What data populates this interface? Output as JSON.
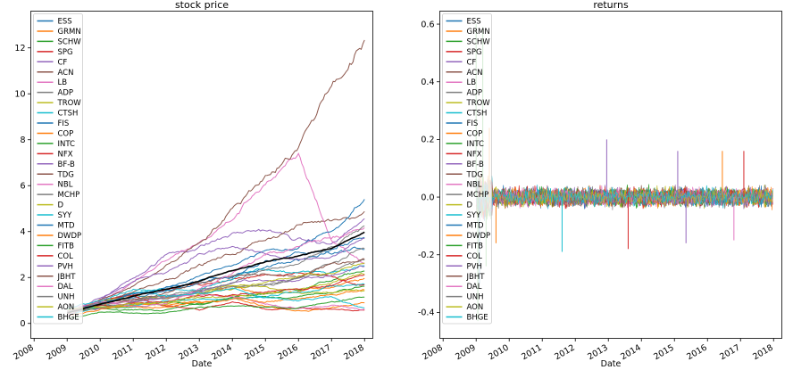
{
  "chart_data": [
    {
      "type": "line",
      "title": "stock price",
      "xlabel": "Date",
      "ylabel": "",
      "xlim": [
        2007.9,
        2018.25
      ],
      "ylim": [
        -0.65,
        13.6
      ],
      "x_ticks": [
        "2008",
        "2009",
        "2010",
        "2011",
        "2012",
        "2013",
        "2014",
        "2015",
        "2016",
        "2017",
        "2018"
      ],
      "y_ticks": [
        "0",
        "2",
        "4",
        "6",
        "8",
        "10",
        "12"
      ],
      "y_tick_values": [
        0,
        2,
        4,
        6,
        8,
        10,
        12
      ],
      "legend_position": "upper left",
      "grid": false,
      "series": [
        {
          "name": "ESS",
          "color": "#1f77b4",
          "x": [
            2009,
            2010,
            2011,
            2012,
            2013,
            2014,
            2015,
            2016,
            2017,
            2018
          ],
          "y": [
            0.5,
            0.9,
            1.3,
            1.5,
            1.8,
            2.1,
            2.7,
            3.1,
            2.9,
            3.2
          ]
        },
        {
          "name": "GRMN",
          "color": "#ff7f0e",
          "x": [
            2009,
            2010,
            2011,
            2012,
            2013,
            2014,
            2015,
            2016,
            2017,
            2018
          ],
          "y": [
            0.5,
            0.9,
            1.0,
            1.1,
            1.3,
            1.6,
            1.3,
            1.5,
            1.6,
            1.9
          ]
        },
        {
          "name": "SCHW",
          "color": "#2ca02c",
          "x": [
            2009,
            2010,
            2011,
            2012,
            2013,
            2014,
            2015,
            2016,
            2017,
            2018
          ],
          "y": [
            0.6,
            0.7,
            0.6,
            0.6,
            0.9,
            1.1,
            1.3,
            1.5,
            1.9,
            2.3
          ]
        },
        {
          "name": "SPG",
          "color": "#d62728",
          "x": [
            2009,
            2010,
            2011,
            2012,
            2013,
            2014,
            2015,
            2016,
            2017,
            2018
          ],
          "y": [
            0.4,
            0.9,
            1.2,
            1.4,
            1.6,
            1.8,
            2.0,
            2.1,
            1.9,
            1.7
          ]
        },
        {
          "name": "CF",
          "color": "#9467bd",
          "x": [
            2009,
            2010,
            2011,
            2012,
            2013,
            2014,
            2015,
            2016,
            2017,
            2018
          ],
          "y": [
            0.5,
            1.0,
            2.0,
            3.0,
            3.4,
            3.9,
            4.1,
            3.6,
            3.4,
            4.5
          ]
        },
        {
          "name": "ACN",
          "color": "#8c564b",
          "x": [
            2009,
            2010,
            2011,
            2012,
            2013,
            2014,
            2015,
            2016,
            2017,
            2018
          ],
          "y": [
            0.4,
            0.9,
            1.4,
            2.0,
            2.6,
            3.0,
            3.7,
            4.3,
            4.5,
            5.0
          ]
        },
        {
          "name": "LB",
          "color": "#e377c2",
          "x": [
            2009,
            2010,
            2011,
            2012,
            2013,
            2014,
            2015,
            2016,
            2017,
            2018
          ],
          "y": [
            0.3,
            1.0,
            1.8,
            2.7,
            3.5,
            4.5,
            6.2,
            7.1,
            3.6,
            2.6
          ]
        },
        {
          "name": "ADP",
          "color": "#7f7f7f",
          "x": [
            2009,
            2010,
            2011,
            2012,
            2013,
            2014,
            2015,
            2016,
            2017,
            2018
          ],
          "y": [
            0.6,
            0.8,
            1.0,
            1.1,
            1.4,
            1.6,
            1.8,
            2.0,
            2.3,
            2.7
          ]
        },
        {
          "name": "TROW",
          "color": "#bcbd22",
          "x": [
            2009,
            2010,
            2011,
            2012,
            2013,
            2014,
            2015,
            2016,
            2017,
            2018
          ],
          "y": [
            0.5,
            0.9,
            1.2,
            1.2,
            1.4,
            1.6,
            1.6,
            1.5,
            1.7,
            2.2
          ]
        },
        {
          "name": "CTSH",
          "color": "#17becf",
          "x": [
            2009,
            2010,
            2011,
            2012,
            2013,
            2014,
            2015,
            2016,
            2017,
            2018
          ],
          "y": [
            0.3,
            0.9,
            1.4,
            1.5,
            1.6,
            2.1,
            2.4,
            2.2,
            2.3,
            2.6
          ]
        },
        {
          "name": "FIS",
          "color": "#1f77b4",
          "x": [
            2009,
            2010,
            2011,
            2012,
            2013,
            2014,
            2015,
            2016,
            2017,
            2018
          ],
          "y": [
            0.5,
            0.9,
            1.1,
            1.3,
            1.7,
            2.0,
            2.3,
            2.7,
            3.3,
            3.8
          ]
        },
        {
          "name": "COP",
          "color": "#ff7f0e",
          "x": [
            2009,
            2010,
            2011,
            2012,
            2013,
            2014,
            2015,
            2016,
            2017,
            2018
          ],
          "y": [
            0.5,
            0.6,
            0.8,
            0.8,
            0.9,
            1.1,
            0.8,
            0.6,
            0.7,
            0.9
          ]
        },
        {
          "name": "INTC",
          "color": "#2ca02c",
          "x": [
            2009,
            2010,
            2011,
            2012,
            2013,
            2014,
            2015,
            2016,
            2017,
            2018
          ],
          "y": [
            0.5,
            0.7,
            0.7,
            0.9,
            0.8,
            1.1,
            1.2,
            1.2,
            1.3,
            1.6
          ]
        },
        {
          "name": "NFX",
          "color": "#d62728",
          "x": [
            2009,
            2010,
            2011,
            2012,
            2013,
            2014,
            2015,
            2016,
            2017,
            2018
          ],
          "y": [
            0.5,
            1.0,
            1.2,
            0.8,
            0.6,
            0.9,
            0.6,
            0.7,
            0.7,
            0.6
          ]
        },
        {
          "name": "BF-B",
          "color": "#9467bd",
          "x": [
            2009,
            2010,
            2011,
            2012,
            2013,
            2014,
            2015,
            2016,
            2017,
            2018
          ],
          "y": [
            0.6,
            0.7,
            0.9,
            1.1,
            1.4,
            1.7,
            1.9,
            2.0,
            2.1,
            2.5
          ]
        },
        {
          "name": "TDG",
          "color": "#8c564b",
          "x": [
            2009,
            2010,
            2011,
            2012,
            2013,
            2014,
            2015,
            2016,
            2017,
            2018
          ],
          "y": [
            0.3,
            1.0,
            1.6,
            2.5,
            3.6,
            5.0,
            6.5,
            7.8,
            10.5,
            12.4
          ]
        },
        {
          "name": "NBL",
          "color": "#e377c2",
          "x": [
            2009,
            2010,
            2011,
            2012,
            2013,
            2014,
            2015,
            2016,
            2017,
            2018
          ],
          "y": [
            0.5,
            0.9,
            1.0,
            1.1,
            1.3,
            1.2,
            0.8,
            0.7,
            0.8,
            0.6
          ]
        },
        {
          "name": "MCHP",
          "color": "#7f7f7f",
          "x": [
            2009,
            2010,
            2011,
            2012,
            2013,
            2014,
            2015,
            2016,
            2017,
            2018
          ],
          "y": [
            0.5,
            0.9,
            1.1,
            1.1,
            1.3,
            1.5,
            1.6,
            2.0,
            2.6,
            3.2
          ]
        },
        {
          "name": "D",
          "color": "#bcbd22",
          "x": [
            2009,
            2010,
            2011,
            2012,
            2013,
            2014,
            2015,
            2016,
            2017,
            2018
          ],
          "y": [
            0.6,
            0.7,
            0.8,
            0.9,
            1.1,
            1.2,
            1.3,
            1.3,
            1.4,
            1.5
          ]
        },
        {
          "name": "SYY",
          "color": "#17becf",
          "x": [
            2009,
            2010,
            2011,
            2012,
            2013,
            2014,
            2015,
            2016,
            2017,
            2018
          ],
          "y": [
            0.6,
            0.8,
            0.8,
            0.9,
            1.0,
            1.1,
            1.2,
            1.5,
            1.6,
            1.7
          ]
        },
        {
          "name": "MTD",
          "color": "#1f77b4",
          "x": [
            2009,
            2010,
            2011,
            2012,
            2013,
            2014,
            2015,
            2016,
            2017,
            2018
          ],
          "y": [
            0.5,
            0.9,
            1.3,
            1.6,
            2.0,
            2.6,
            3.1,
            3.3,
            4.1,
            5.5
          ]
        },
        {
          "name": "DWDP",
          "color": "#ff7f0e",
          "x": [
            2009,
            2010,
            2011,
            2012,
            2013,
            2014,
            2015,
            2016,
            2017,
            2018
          ],
          "y": [
            0.3,
            0.6,
            0.8,
            0.7,
            0.9,
            1.0,
            1.0,
            1.1,
            1.3,
            1.5
          ]
        },
        {
          "name": "FITB",
          "color": "#2ca02c",
          "x": [
            2009,
            2010,
            2011,
            2012,
            2013,
            2014,
            2015,
            2016,
            2017,
            2018
          ],
          "y": [
            0.2,
            0.5,
            0.5,
            0.5,
            0.7,
            0.8,
            0.7,
            0.7,
            1.0,
            1.1
          ]
        },
        {
          "name": "COL",
          "color": "#d62728",
          "x": [
            2009,
            2010,
            2011,
            2012,
            2013,
            2014,
            2015,
            2016,
            2017,
            2018
          ],
          "y": [
            0.5,
            0.8,
            0.9,
            0.9,
            1.2,
            1.4,
            1.5,
            1.5,
            1.8,
            2.3
          ]
        },
        {
          "name": "PVH",
          "color": "#9467bd",
          "x": [
            2009,
            2010,
            2011,
            2012,
            2013,
            2014,
            2015,
            2016,
            2017,
            2018
          ],
          "y": [
            0.3,
            1.1,
            1.8,
            2.3,
            3.1,
            3.3,
            3.0,
            2.6,
            2.8,
            3.6
          ]
        },
        {
          "name": "JBHT",
          "color": "#8c564b",
          "x": [
            2009,
            2010,
            2011,
            2012,
            2013,
            2014,
            2015,
            2016,
            2017,
            2018
          ],
          "y": [
            0.5,
            0.8,
            1.0,
            1.4,
            1.8,
            2.0,
            2.1,
            2.0,
            2.5,
            2.9
          ]
        },
        {
          "name": "DAL",
          "color": "#e377c2",
          "x": [
            2009,
            2010,
            2011,
            2012,
            2013,
            2014,
            2015,
            2016,
            2017,
            2018
          ],
          "y": [
            0.6,
            1.0,
            0.8,
            0.9,
            1.5,
            2.2,
            3.0,
            3.3,
            3.7,
            4.1
          ]
        },
        {
          "name": "UNH",
          "color": "#7f7f7f",
          "x": [
            2009,
            2010,
            2011,
            2012,
            2013,
            2014,
            2015,
            2016,
            2017,
            2018
          ],
          "y": [
            0.5,
            0.7,
            1.0,
            1.2,
            1.4,
            1.8,
            2.3,
            2.7,
            3.3,
            4.2
          ]
        },
        {
          "name": "AON",
          "color": "#bcbd22",
          "x": [
            2009,
            2010,
            2011,
            2012,
            2013,
            2014,
            2015,
            2016,
            2017,
            2018
          ],
          "y": [
            0.6,
            0.7,
            0.9,
            1.0,
            1.3,
            1.6,
            1.8,
            2.0,
            2.2,
            2.6
          ]
        },
        {
          "name": "BHGE",
          "color": "#17becf",
          "x": [
            2009,
            2010,
            2011,
            2012,
            2013,
            2014,
            2015,
            2016,
            2017,
            2018
          ],
          "y": [
            0.6,
            1.0,
            1.6,
            1.2,
            1.3,
            1.5,
            1.1,
            1.0,
            1.2,
            0.7
          ]
        }
      ],
      "overlay_series": {
        "color": "#000000",
        "x": [
          2009,
          2010,
          2011,
          2012,
          2013,
          2014,
          2015,
          2016,
          2017,
          2018
        ],
        "y": [
          0.45,
          0.85,
          1.2,
          1.5,
          1.85,
          2.3,
          2.7,
          2.9,
          3.3,
          4.0
        ]
      }
    },
    {
      "type": "line",
      "title": "returns",
      "xlabel": "Date",
      "ylabel": "",
      "xlim": [
        2007.9,
        2018.25
      ],
      "ylim": [
        -0.49,
        0.645
      ],
      "x_ticks": [
        "2008",
        "2009",
        "2010",
        "2011",
        "2012",
        "2013",
        "2014",
        "2015",
        "2016",
        "2017",
        "2018"
      ],
      "y_ticks": [
        "-0.4",
        "-0.2",
        "0.0",
        "0.2",
        "0.4",
        "0.6"
      ],
      "y_tick_values": [
        -0.4,
        -0.2,
        0.0,
        0.2,
        0.4,
        0.6
      ],
      "legend_position": "upper left",
      "grid": false,
      "series_names": [
        "ESS",
        "GRMN",
        "SCHW",
        "SPG",
        "CF",
        "ACN",
        "LB",
        "ADP",
        "TROW",
        "CTSH",
        "FIS",
        "COP",
        "INTC",
        "NFX",
        "BF-B",
        "TDG",
        "NBL",
        "MCHP",
        "D",
        "SYY",
        "MTD",
        "DWDP",
        "FITB",
        "COL",
        "PVH",
        "JBHT",
        "DAL",
        "UNH",
        "AON",
        "BHGE"
      ],
      "series_colors": [
        "#1f77b4",
        "#ff7f0e",
        "#2ca02c",
        "#d62728",
        "#9467bd",
        "#8c564b",
        "#e377c2",
        "#7f7f7f",
        "#bcbd22",
        "#17becf",
        "#1f77b4",
        "#ff7f0e",
        "#2ca02c",
        "#d62728",
        "#9467bd",
        "#8c564b",
        "#e377c2",
        "#7f7f7f",
        "#bcbd22",
        "#17becf",
        "#1f77b4",
        "#ff7f0e",
        "#2ca02c",
        "#d62728",
        "#9467bd",
        "#8c564b",
        "#e377c2",
        "#7f7f7f",
        "#bcbd22",
        "#17becf"
      ],
      "return_range": {
        "x": [
          2009,
          2018
        ],
        "typical_band": [
          -0.05,
          0.05
        ],
        "max": 0.6,
        "min": -0.43
      },
      "spikes": [
        {
          "x": 2009.0,
          "y": 0.6,
          "color": "#2ca02c"
        },
        {
          "x": 2009.2,
          "y": 0.59,
          "color": "#2ca02c"
        },
        {
          "x": 2009.05,
          "y": -0.43,
          "color": "#2ca02c"
        },
        {
          "x": 2009.1,
          "y": -0.3,
          "color": "#1f77b4"
        },
        {
          "x": 2009.4,
          "y": 0.24,
          "color": "#ff7f0e"
        },
        {
          "x": 2009.3,
          "y": -0.24,
          "color": "#2ca02c"
        },
        {
          "x": 2012.95,
          "y": 0.2,
          "color": "#9467bd"
        },
        {
          "x": 2013.6,
          "y": -0.18,
          "color": "#d62728"
        },
        {
          "x": 2009.6,
          "y": -0.16,
          "color": "#ff7f0e"
        },
        {
          "x": 2011.6,
          "y": -0.19,
          "color": "#17becf"
        },
        {
          "x": 2016.45,
          "y": 0.16,
          "color": "#ff7f0e"
        },
        {
          "x": 2017.1,
          "y": 0.16,
          "color": "#d62728"
        },
        {
          "x": 2015.1,
          "y": 0.16,
          "color": "#9467bd"
        },
        {
          "x": 2016.8,
          "y": -0.15,
          "color": "#e377c2"
        },
        {
          "x": 2015.35,
          "y": -0.16,
          "color": "#9467bd"
        }
      ]
    }
  ]
}
